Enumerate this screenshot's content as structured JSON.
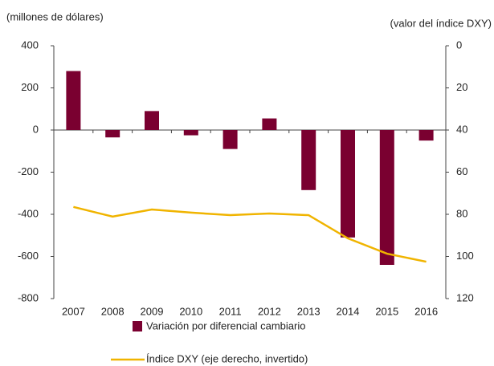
{
  "chart_data": {
    "type": "bar_line",
    "ylabel": "(millones de dólares)",
    "y2label": "(valor del índice DXY)",
    "categories": [
      "2007",
      "2008",
      "2009",
      "2010",
      "2011",
      "2012",
      "2013",
      "2014",
      "2015",
      "2016"
    ],
    "series": [
      {
        "name": "Variación por diferencial cambiario",
        "color": "#7a0030",
        "type": "bar",
        "values": [
          280,
          -35,
          90,
          -25,
          -90,
          55,
          -285,
          -510,
          -640,
          -50
        ]
      },
      {
        "name": "Índice DXY (eje derecho, invertido)",
        "color": "#f0b400",
        "type": "line",
        "axis": "y2",
        "values": [
          76.5,
          81.1,
          77.7,
          79.2,
          80.4,
          79.6,
          80.4,
          91.4,
          98.7,
          102.5
        ]
      }
    ],
    "ylim": [
      -800,
      400
    ],
    "yticks": [
      -800,
      -600,
      -400,
      -200,
      0,
      200,
      400
    ],
    "y2lim": [
      0,
      120
    ],
    "y2ticks": [
      0,
      20,
      40,
      60,
      80,
      100,
      120
    ],
    "y2_inverted": true
  }
}
